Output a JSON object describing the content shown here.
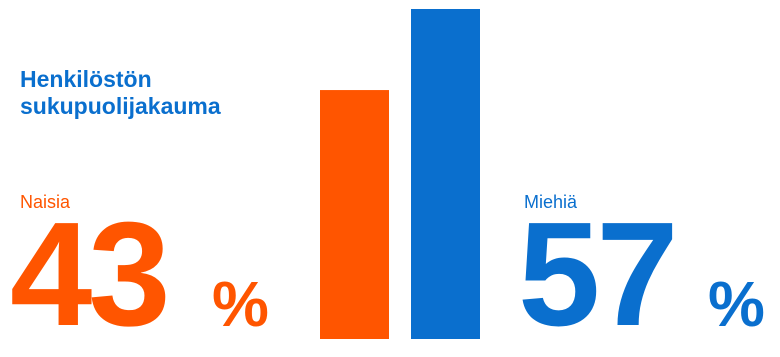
{
  "title": "Henkilöstön sukupuolijakauma",
  "categories": [
    {
      "label": "Naisia",
      "value": "43",
      "unit": "%",
      "color": "#FF5500"
    },
    {
      "label": "Miehiä",
      "value": "57",
      "unit": "%",
      "color": "#0A6FCE"
    }
  ],
  "chart_data": {
    "type": "bar",
    "title": "Henkilöstön sukupuolijakauma",
    "categories": [
      "Naisia",
      "Miehiä"
    ],
    "values": [
      43,
      57
    ],
    "unit": "%",
    "colors": [
      "#FF5500",
      "#0A6FCE"
    ],
    "ylim": [
      0,
      57
    ],
    "grid": false,
    "xlabel": "",
    "ylabel": ""
  }
}
